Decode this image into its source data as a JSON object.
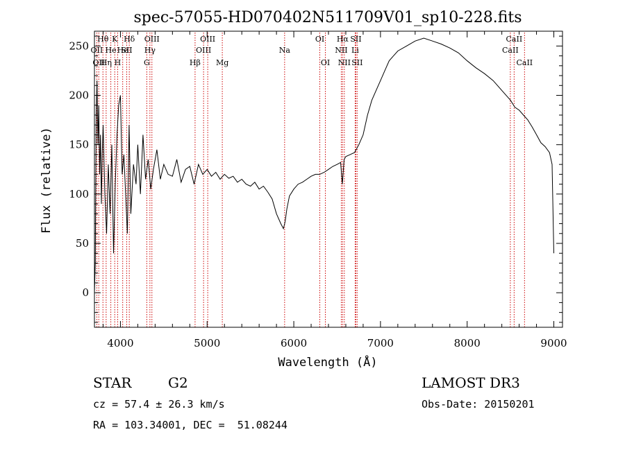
{
  "chart_data": {
    "type": "line",
    "title": "spec-57055-HD070402N511709V01_sp10-228.fits",
    "xlabel": "Wavelength (Å)",
    "ylabel": "Flux (relative)",
    "xlim": [
      3700,
      9100
    ],
    "ylim": [
      -35,
      265
    ],
    "x_ticks": [
      4000,
      5000,
      6000,
      7000,
      8000,
      9000
    ],
    "y_ticks": [
      0,
      50,
      100,
      150,
      200,
      250
    ],
    "grid": false,
    "line_color": "#000000",
    "marker_color": "#cc0000",
    "series": [
      {
        "x": [
          3700,
          3710,
          3720,
          3730,
          3740,
          3750,
          3760,
          3770,
          3780,
          3790,
          3800,
          3820,
          3840,
          3860,
          3880,
          3900,
          3920,
          3940,
          3960,
          3980,
          4000,
          4020,
          4040,
          4060,
          4080,
          4100,
          4120,
          4150,
          4180,
          4200,
          4230,
          4260,
          4290,
          4320,
          4350,
          4380,
          4420,
          4460,
          4500,
          4550,
          4600,
          4650,
          4700,
          4750,
          4800,
          4850,
          4900,
          4950,
          5000,
          5050,
          5100,
          5150,
          5200,
          5250,
          5300,
          5350,
          5400,
          5450,
          5500,
          5550,
          5600,
          5650,
          5700,
          5750,
          5800,
          5850,
          5880,
          5900,
          5920,
          5950,
          6000,
          6050,
          6100,
          6150,
          6200,
          6250,
          6300,
          6350,
          6400,
          6450,
          6500,
          6540,
          6560,
          6580,
          6600,
          6650,
          6700,
          6720,
          6750,
          6800,
          6850,
          6900,
          6950,
          7000,
          7050,
          7100,
          7150,
          7200,
          7300,
          7400,
          7500,
          7600,
          7700,
          7800,
          7900,
          8000,
          8100,
          8200,
          8300,
          8400,
          8500,
          8550,
          8600,
          8650,
          8700,
          8750,
          8800,
          8850,
          8900,
          8950,
          8980,
          9000
        ],
        "y": [
          0,
          30,
          180,
          215,
          150,
          190,
          120,
          160,
          90,
          140,
          170,
          100,
          60,
          130,
          80,
          150,
          40,
          110,
          160,
          190,
          200,
          120,
          140,
          100,
          60,
          170,
          80,
          130,
          110,
          150,
          100,
          160,
          115,
          135,
          105,
          125,
          145,
          115,
          130,
          120,
          118,
          135,
          112,
          125,
          128,
          110,
          130,
          120,
          125,
          118,
          122,
          115,
          120,
          116,
          118,
          112,
          115,
          110,
          108,
          112,
          105,
          108,
          102,
          95,
          80,
          70,
          65,
          72,
          85,
          98,
          105,
          110,
          112,
          115,
          118,
          120,
          120,
          122,
          125,
          128,
          130,
          132,
          110,
          135,
          138,
          140,
          142,
          145,
          150,
          160,
          180,
          195,
          205,
          215,
          225,
          235,
          240,
          245,
          250,
          255,
          258,
          255,
          252,
          248,
          243,
          235,
          228,
          222,
          215,
          205,
          195,
          188,
          185,
          180,
          175,
          168,
          160,
          152,
          148,
          142,
          130,
          40
        ]
      }
    ],
    "lines": [
      {
        "w": 3727,
        "label": "OII",
        "row": 2
      },
      {
        "w": 3750,
        "label": "OII",
        "row": 3
      },
      {
        "w": 3798,
        "label": "Hθ",
        "row": 1
      },
      {
        "w": 3835,
        "label": "Hη",
        "row": 3
      },
      {
        "w": 3889,
        "label": "He",
        "row": 2
      },
      {
        "w": 3934,
        "label": "K",
        "row": 1
      },
      {
        "w": 3968,
        "label": "H",
        "row": 3
      },
      {
        "w": 4026,
        "label": "He",
        "row": 2
      },
      {
        "w": 4072,
        "label": "SII",
        "row": 2
      },
      {
        "w": 4102,
        "label": "Hδ",
        "row": 1
      },
      {
        "w": 4304,
        "label": "G",
        "row": 3
      },
      {
        "w": 4340,
        "label": "Hγ",
        "row": 2
      },
      {
        "w": 4363,
        "label": "OIII",
        "row": 1
      },
      {
        "w": 4861,
        "label": "Hβ",
        "row": 3
      },
      {
        "w": 4959,
        "label": "OIII",
        "row": 2
      },
      {
        "w": 5007,
        "label": "OIII",
        "row": 1
      },
      {
        "w": 5175,
        "label": "Mg",
        "row": 3
      },
      {
        "w": 5894,
        "label": "Na",
        "row": 2
      },
      {
        "w": 6300,
        "label": "OI",
        "row": 1
      },
      {
        "w": 6364,
        "label": "OI",
        "row": 3
      },
      {
        "w": 6548,
        "label": "NII",
        "row": 2
      },
      {
        "w": 6563,
        "label": "Hα",
        "row": 1
      },
      {
        "w": 6583,
        "label": "NII",
        "row": 3
      },
      {
        "w": 6708,
        "label": "Li",
        "row": 2
      },
      {
        "w": 6716,
        "label": "SII",
        "row": 1
      },
      {
        "w": 6731,
        "label": "SII",
        "row": 3
      },
      {
        "w": 8498,
        "label": "CaII",
        "row": 2
      },
      {
        "w": 8542,
        "label": "CaII",
        "row": 1
      },
      {
        "w": 8662,
        "label": "CaII",
        "row": 3
      }
    ]
  },
  "info": {
    "object_class": "STAR",
    "subclass": "G2",
    "survey": "LAMOST DR3",
    "redshift": "cz = 57.4 ± 26.3 km/s",
    "obs_date": "Obs-Date: 20150201",
    "coords": "RA = 103.34001, DEC =  51.08244"
  }
}
